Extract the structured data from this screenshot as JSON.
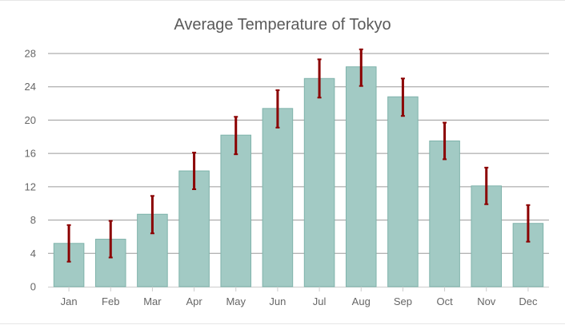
{
  "chart_data": {
    "type": "bar",
    "title": "Average Temperature of Tokyo",
    "xlabel": "",
    "ylabel": "",
    "categories": [
      "Jan",
      "Feb",
      "Mar",
      "Apr",
      "May",
      "Jun",
      "Jul",
      "Aug",
      "Sep",
      "Oct",
      "Nov",
      "Dec"
    ],
    "values": [
      5.2,
      5.7,
      8.7,
      13.9,
      18.2,
      21.4,
      25.0,
      26.4,
      22.8,
      17.5,
      12.1,
      7.6
    ],
    "error_low": [
      3.0,
      3.5,
      6.4,
      11.7,
      15.9,
      19.1,
      22.7,
      24.1,
      20.5,
      15.3,
      9.9,
      5.4
    ],
    "error_high": [
      7.4,
      7.9,
      10.9,
      16.1,
      20.4,
      23.6,
      27.3,
      28.5,
      25.0,
      19.7,
      14.3,
      9.8
    ],
    "ylim": [
      0,
      28
    ],
    "yticks": [
      0,
      4,
      8,
      12,
      16,
      20,
      24,
      28
    ],
    "grid": true,
    "legend": "none",
    "colors": {
      "bar_fill": "#a2cac4",
      "bar_stroke": "#7fb3ab",
      "error_bar": "#8b0000",
      "grid": "#9a9a9a",
      "axis": "#cccccc",
      "text": "#666666",
      "title": "#5a5a5a"
    }
  }
}
